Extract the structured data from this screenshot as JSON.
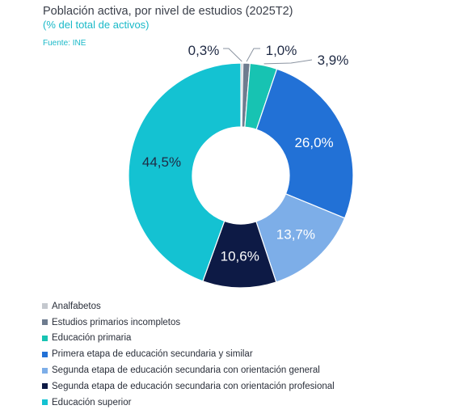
{
  "header": {
    "title": "Población activa, por nivel de estudios (2025T2)",
    "subtitle": "(% del total de activos)",
    "source": "Fuente: INE"
  },
  "chart_data": {
    "type": "pie",
    "style": "donut",
    "legend_position": "bottom-left",
    "slices": [
      {
        "name": "Analfabetos",
        "value": 0.3,
        "label": "0,3%",
        "color": "#c4c8ce"
      },
      {
        "name": "Estudios primarios incompletos",
        "value": 1.0,
        "label": "1,0%",
        "color": "#6e7c8f"
      },
      {
        "name": "Educación primaria",
        "value": 3.9,
        "label": "3,9%",
        "color": "#17c3b2"
      },
      {
        "name": "Primera etapa de educación secundaria y similar",
        "value": 26.0,
        "label": "26,0%",
        "color": "#2271d6"
      },
      {
        "name": "Segunda etapa de educación secundaria con orientación general",
        "value": 13.7,
        "label": "13,7%",
        "color": "#7daee8"
      },
      {
        "name": "Segunda etapa de educación secundaria con orientación profesional",
        "value": 10.6,
        "label": "10,6%",
        "color": "#0d1a45"
      },
      {
        "name": "Educación superior",
        "value": 44.5,
        "label": "44,5%",
        "color": "#14c2d2"
      }
    ]
  }
}
